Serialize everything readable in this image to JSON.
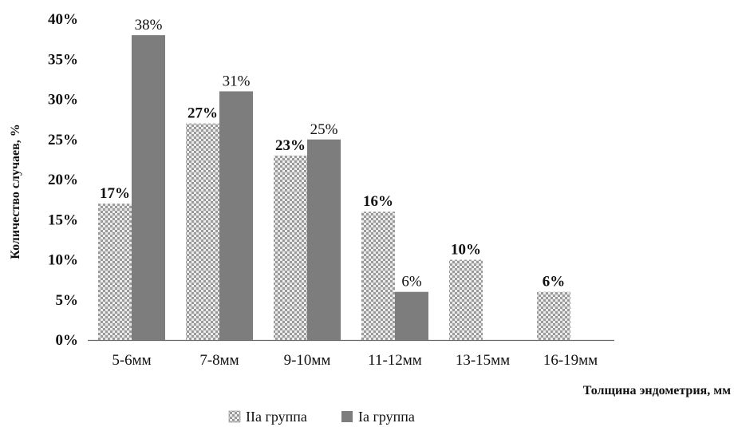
{
  "chart_data": {
    "type": "bar",
    "categories": [
      "5-6мм",
      "7-8мм",
      "9-10мм",
      "11-12мм",
      "13-15мм",
      "16-19мм"
    ],
    "series": [
      {
        "name": "IIa группа",
        "values": [
          17,
          27,
          23,
          16,
          10,
          6
        ],
        "labels": [
          "17%",
          "27%",
          "23%",
          "16%",
          "10%",
          "6%"
        ],
        "pattern": "checkered",
        "color": "#bdbdbd"
      },
      {
        "name": "Ia группа",
        "values": [
          38,
          31,
          25,
          6,
          null,
          null
        ],
        "labels": [
          "38%",
          "31%",
          "25%",
          "6%",
          "",
          ""
        ],
        "pattern": "solid",
        "color": "#7d7d7d"
      }
    ],
    "title": "",
    "xlabel": "Толщина эндометрия, мм",
    "ylabel": "Количество случаев, %",
    "ylim": [
      0,
      40
    ],
    "yticks": [
      "0%",
      "5%",
      "10%",
      "15%",
      "20%",
      "25%",
      "30%",
      "35%",
      "40%"
    ],
    "grid": false,
    "legend": "bottom-center"
  }
}
